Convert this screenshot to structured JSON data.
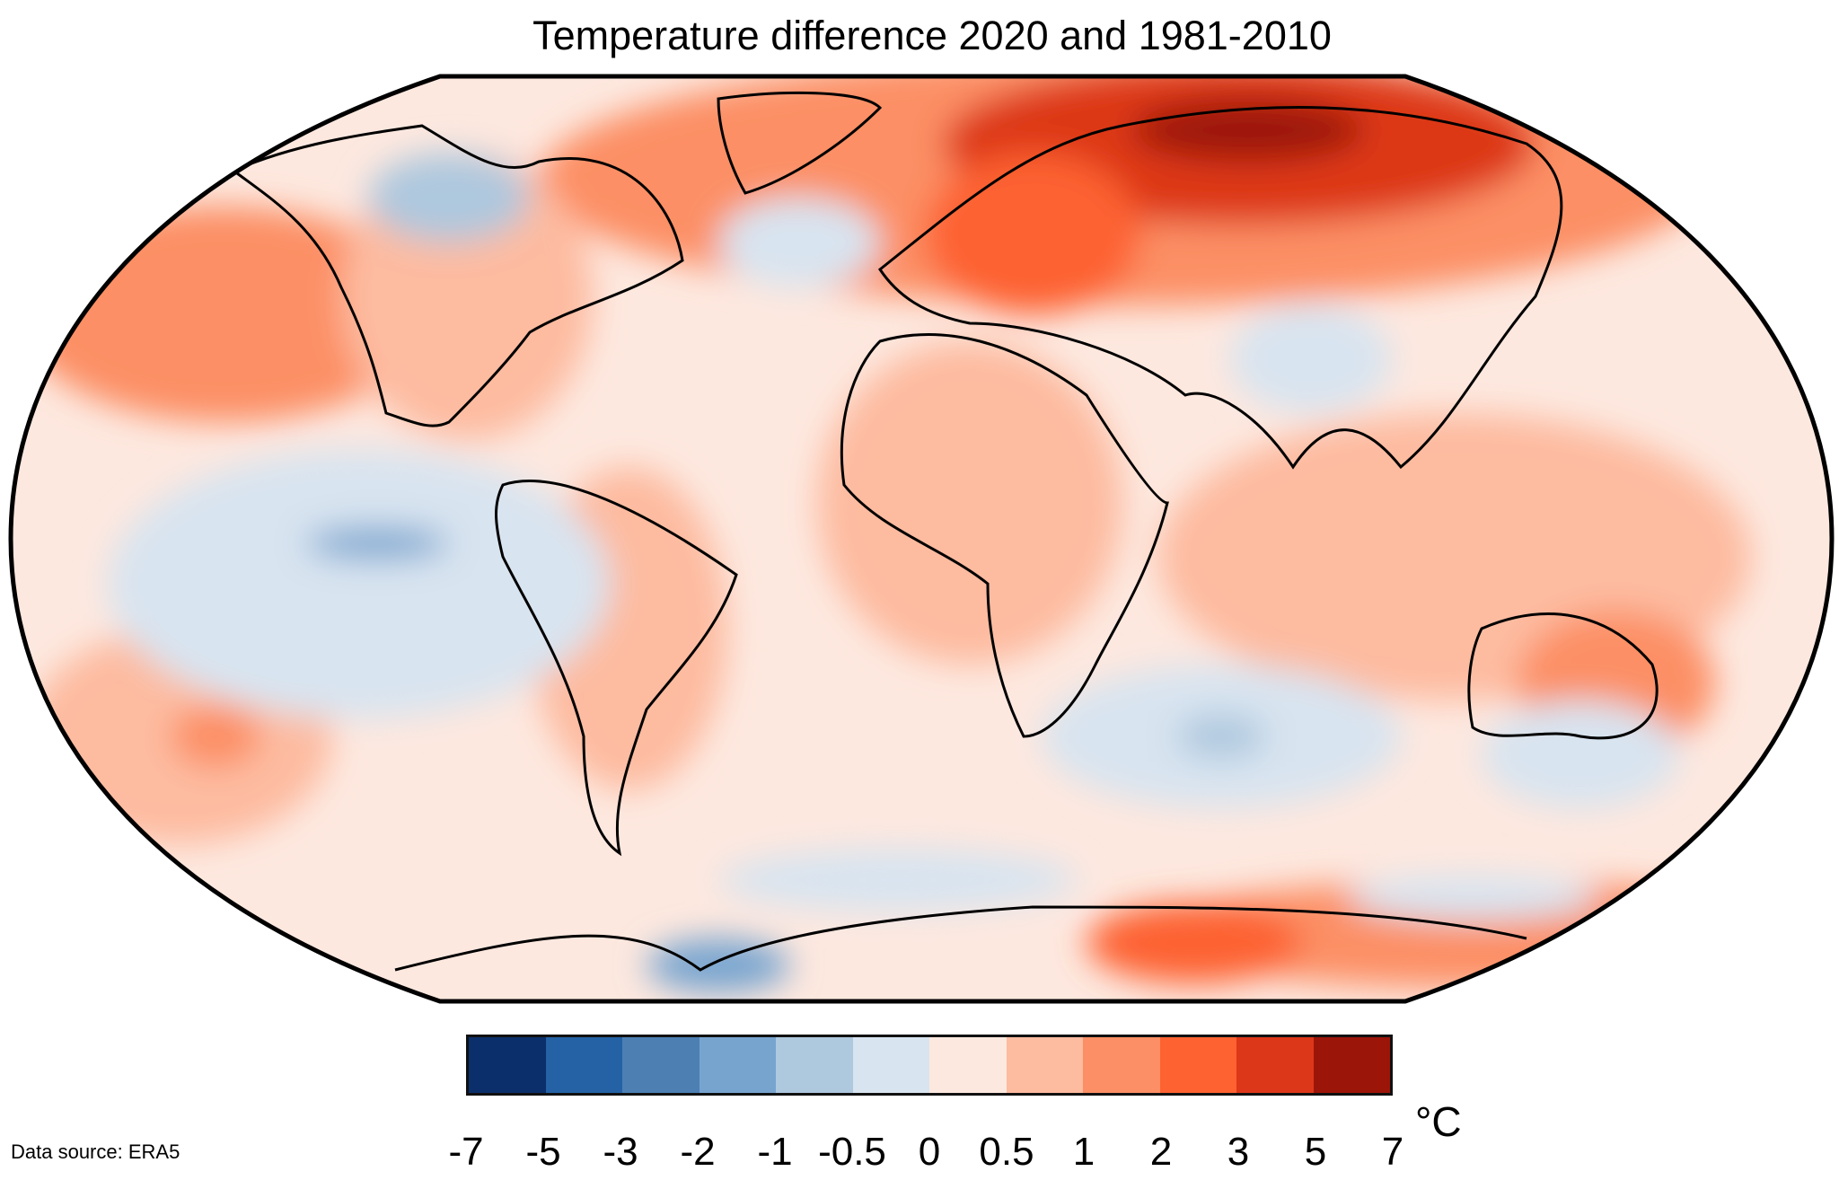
{
  "title": "Temperature difference 2020 and 1981-2010",
  "source": "Data source: ERA5",
  "legend": {
    "unit": "°C",
    "ticks": [
      "-7",
      "-5",
      "-3",
      "-2",
      "-1",
      "-0.5",
      "0",
      "0.5",
      "1",
      "2",
      "3",
      "5",
      "7"
    ],
    "colors": [
      "#0b2f6a",
      "#2462a5",
      "#4d7fb3",
      "#77a4cf",
      "#aec8de",
      "#d8e4f0",
      "#fde8df",
      "#fdbba0",
      "#fc8f65",
      "#fd6230",
      "#dd3719",
      "#9c1509"
    ]
  }
}
